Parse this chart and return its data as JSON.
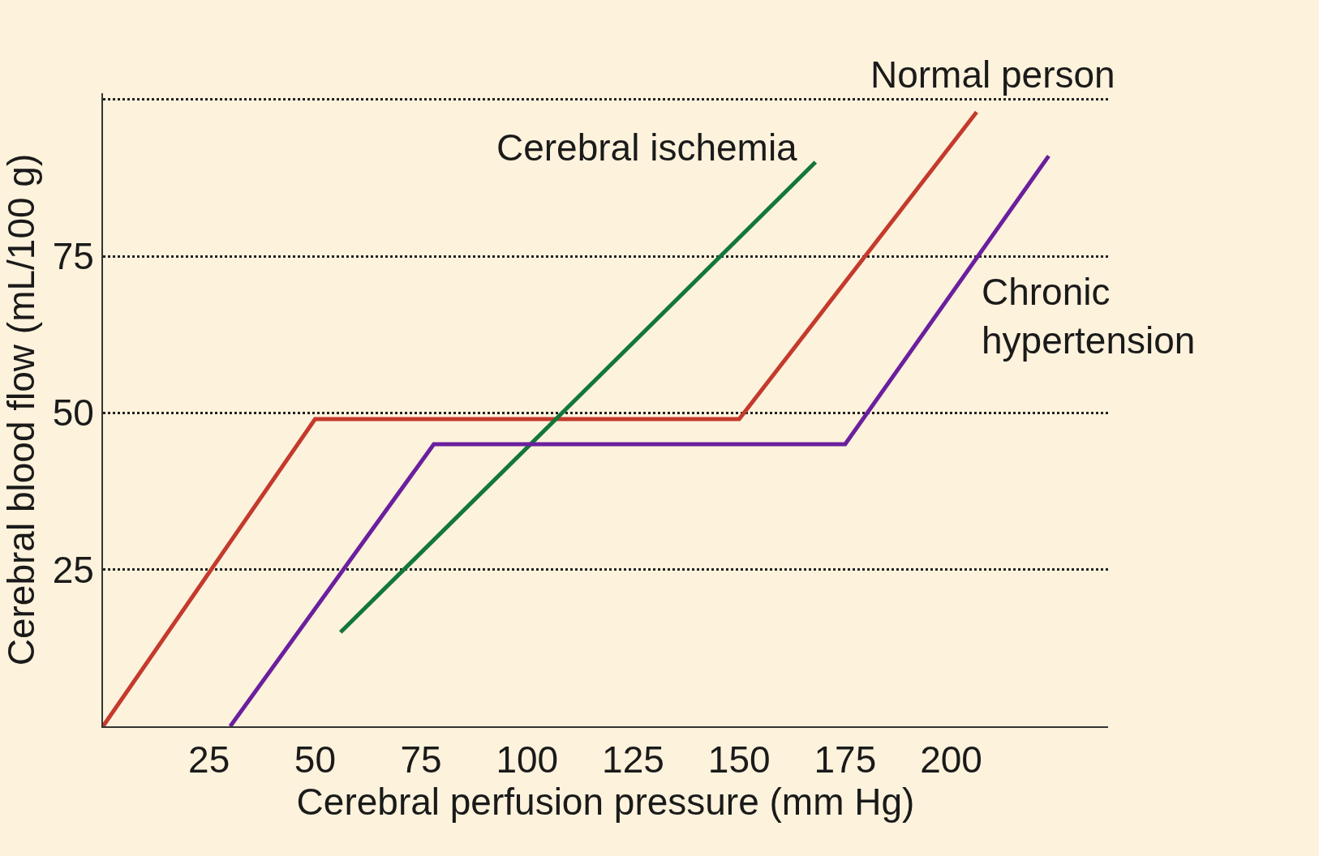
{
  "chart_data": {
    "type": "line",
    "xlabel": "Cerebral perfusion pressure (mm Hg)",
    "ylabel": "Cerebral blood flow (mL/100 g)",
    "series": [
      {
        "name": "Normal person",
        "color": "#c43a2c",
        "x": [
          0,
          50,
          150,
          206
        ],
        "values": [
          0,
          49,
          49,
          98
        ]
      },
      {
        "name": "Cerebral ischemia",
        "color": "#13773a",
        "x": [
          56,
          168
        ],
        "values": [
          15,
          90
        ]
      },
      {
        "name": "Chronic hypertension",
        "color": "#6b1f9e",
        "x": [
          30,
          78,
          175,
          223
        ],
        "values": [
          0,
          45,
          45,
          91
        ]
      }
    ],
    "xlim": [
      0,
      237
    ],
    "ylim": [
      0,
      101
    ],
    "xticks": [
      25,
      50,
      75,
      100,
      125,
      150,
      175,
      200
    ],
    "yticks": [
      25,
      50,
      75,
      {
        "value": 100,
        "label": null
      }
    ],
    "grid": "y",
    "legend": false,
    "marker": "none",
    "line_style": "solid"
  }
}
